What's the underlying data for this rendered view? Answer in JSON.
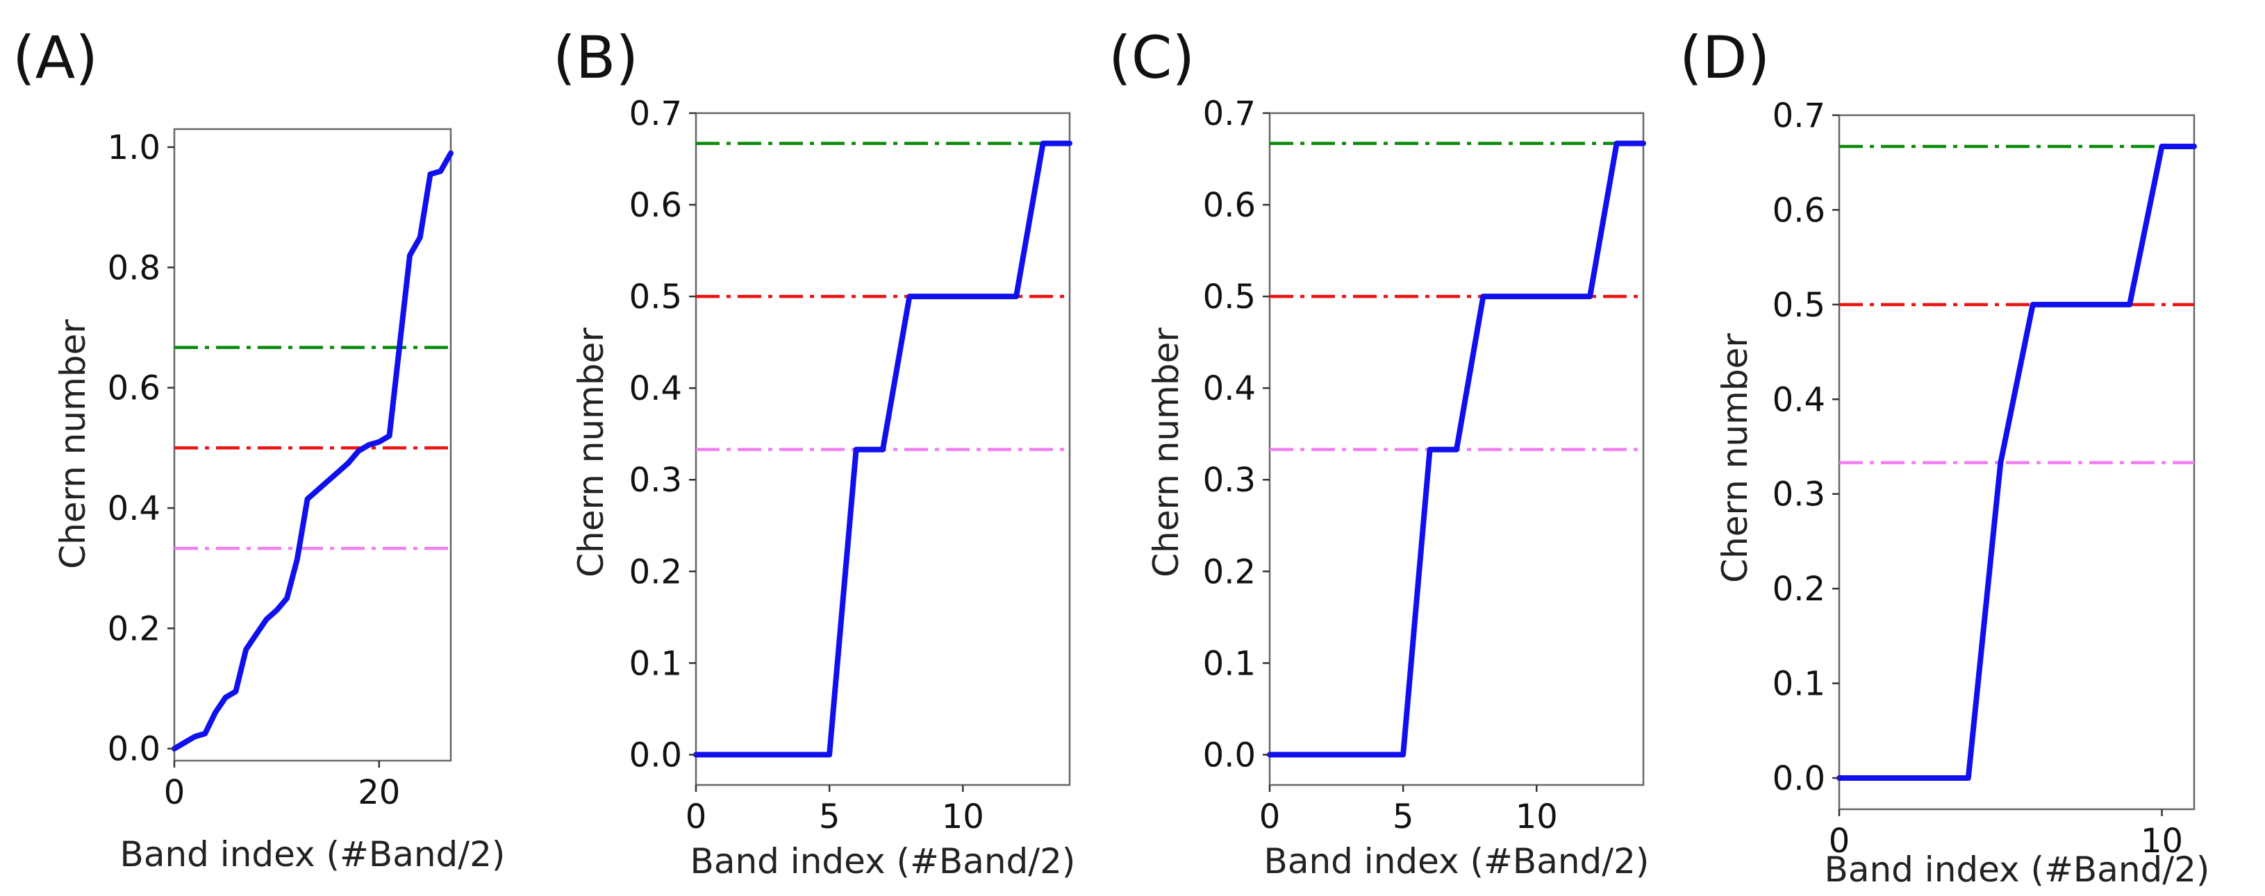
{
  "chart_data": [
    {
      "panel_label": "(A)",
      "type": "line",
      "xlabel": "Band index (#Band/2)",
      "ylabel": "Chern number",
      "xlim": [
        0,
        27
      ],
      "ylim": [
        -0.02,
        1.03
      ],
      "xticks": [
        0,
        20
      ],
      "yticks": [
        0.0,
        0.2,
        0.4,
        0.6,
        0.8,
        1.0
      ],
      "ytick_decimals": 1,
      "grid": false,
      "series": [
        {
          "name": "Chern number",
          "color": "#1010ee",
          "x": [
            0,
            1,
            2,
            3,
            4,
            5,
            6,
            7,
            8,
            9,
            10,
            11,
            12,
            13,
            14,
            15,
            16,
            17,
            18,
            19,
            20,
            21,
            22,
            23,
            24,
            25,
            26,
            27
          ],
          "y": [
            0.0,
            0.01,
            0.02,
            0.025,
            0.06,
            0.085,
            0.095,
            0.165,
            0.19,
            0.215,
            0.23,
            0.25,
            0.315,
            0.415,
            0.43,
            0.445,
            0.46,
            0.475,
            0.495,
            0.505,
            0.51,
            0.52,
            0.67,
            0.82,
            0.85,
            0.955,
            0.96,
            0.99
          ]
        }
      ],
      "reference_lines": [
        {
          "name": "2/3",
          "y": 0.667,
          "color": "#0a8a0a"
        },
        {
          "name": "1/2",
          "y": 0.5,
          "color": "#ee1111"
        },
        {
          "name": "1/3",
          "y": 0.333,
          "color": "#f07ff0"
        }
      ]
    },
    {
      "panel_label": "(B)",
      "type": "line",
      "xlabel": "Band index (#Band/2)",
      "ylabel": "Chern number",
      "xlim": [
        0,
        14
      ],
      "ylim": [
        -0.033,
        0.7
      ],
      "xticks": [
        0,
        5,
        10
      ],
      "yticks": [
        0.0,
        0.1,
        0.2,
        0.3,
        0.4,
        0.5,
        0.6,
        0.7
      ],
      "ytick_decimals": 1,
      "grid": false,
      "series": [
        {
          "name": "Chern number",
          "color": "#1010ee",
          "x": [
            0,
            5,
            6,
            7,
            8,
            9,
            10,
            11,
            12,
            13,
            14
          ],
          "y": [
            0.0,
            0.0,
            0.333,
            0.333,
            0.5,
            0.5,
            0.5,
            0.5,
            0.5,
            0.667,
            0.667
          ]
        }
      ],
      "reference_lines": [
        {
          "name": "2/3",
          "y": 0.667,
          "color": "#0a8a0a"
        },
        {
          "name": "1/2",
          "y": 0.5,
          "color": "#ee1111"
        },
        {
          "name": "1/3",
          "y": 0.333,
          "color": "#f07ff0"
        }
      ]
    },
    {
      "panel_label": "(C)",
      "type": "line",
      "xlabel": "Band index (#Band/2)",
      "ylabel": "Chern number",
      "xlim": [
        0,
        14
      ],
      "ylim": [
        -0.033,
        0.7
      ],
      "xticks": [
        0,
        5,
        10
      ],
      "yticks": [
        0.0,
        0.1,
        0.2,
        0.3,
        0.4,
        0.5,
        0.6,
        0.7
      ],
      "ytick_decimals": 1,
      "grid": false,
      "series": [
        {
          "name": "Chern number",
          "color": "#1010ee",
          "x": [
            0,
            5,
            6,
            7,
            8,
            9,
            10,
            11,
            12,
            13,
            14
          ],
          "y": [
            0.0,
            0.0,
            0.333,
            0.333,
            0.5,
            0.5,
            0.5,
            0.5,
            0.5,
            0.667,
            0.667
          ]
        }
      ],
      "reference_lines": [
        {
          "name": "2/3",
          "y": 0.667,
          "color": "#0a8a0a"
        },
        {
          "name": "1/2",
          "y": 0.5,
          "color": "#ee1111"
        },
        {
          "name": "1/3",
          "y": 0.333,
          "color": "#f07ff0"
        }
      ]
    },
    {
      "panel_label": "(D)",
      "type": "line",
      "xlabel": "Band index (#Band/2)",
      "ylabel": "Chern number",
      "xlim": [
        0,
        11
      ],
      "ylim": [
        -0.033,
        0.7
      ],
      "xticks": [
        0,
        10
      ],
      "yticks": [
        0.0,
        0.1,
        0.2,
        0.3,
        0.4,
        0.5,
        0.6,
        0.7
      ],
      "ytick_decimals": 1,
      "grid": false,
      "series": [
        {
          "name": "Chern number",
          "color": "#1010ee",
          "x": [
            0,
            4,
            5,
            6,
            7,
            8,
            9,
            10,
            11
          ],
          "y": [
            0.0,
            0.0,
            0.333,
            0.5,
            0.5,
            0.5,
            0.5,
            0.667,
            0.667
          ]
        }
      ],
      "reference_lines": [
        {
          "name": "2/3",
          "y": 0.667,
          "color": "#0a8a0a"
        },
        {
          "name": "1/2",
          "y": 0.5,
          "color": "#ee1111"
        },
        {
          "name": "1/3",
          "y": 0.333,
          "color": "#f07ff0"
        }
      ]
    }
  ]
}
